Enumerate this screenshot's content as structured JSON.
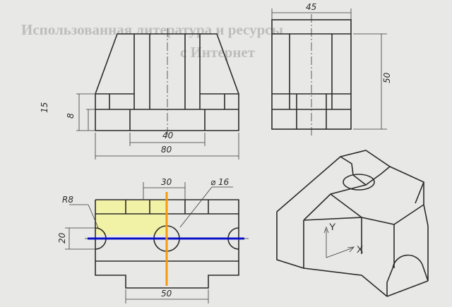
{
  "background_text": {
    "heading_line_1": "Использованная литература и ресурсы",
    "heading_line_2": "с Интернет"
  },
  "dimensions": {
    "top_width": "45",
    "side_height": "50",
    "step_15": "15",
    "step_8": "8",
    "slot_40": "40",
    "overall_80": "80",
    "plan_30": "30",
    "hole_diameter": "⌀ 16",
    "radius": "R8",
    "plan_20": "20",
    "plan_50": "50"
  },
  "axes": {
    "y_label": "Y",
    "x_label": "X"
  },
  "colors": {
    "highlight_fill": "#f2f2a6",
    "horizontal_axis_line": "#0a12c8",
    "vertical_axis_line": "#f39a10",
    "ink": "#2b2b2b",
    "paper": "#e8e8e6"
  }
}
